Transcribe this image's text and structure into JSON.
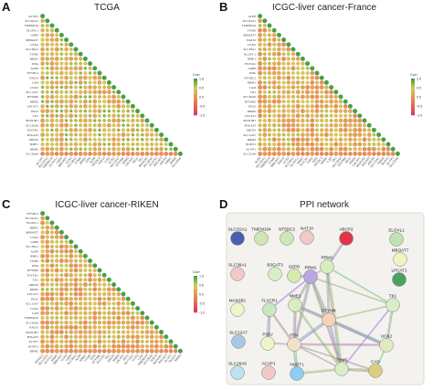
{
  "figure": {
    "panels": [
      {
        "id": "A",
        "letter": "A",
        "title": "TCGA",
        "type": "correlation",
        "genes": [
          "ACVP1",
          "SLCO2A1",
          "TMEM104",
          "ELOVL1",
          "G6PD",
          "MBOAT7",
          "UCK2",
          "SLC38A1",
          "TYMS",
          "RRM1",
          "ITPA",
          "ACPP",
          "NT5DC2",
          "NAT10",
          "CAD",
          "UCK2",
          "SLC12A7",
          "DTYMK",
          "RRM2",
          "LPCAT1",
          "PIGU",
          "TK1",
          "MAN1B1",
          "SLC26A6",
          "FLVCR1",
          "B3GAT3",
          "ABCP2",
          "NME1",
          "RRM2",
          "SLC26A6"
        ],
        "legend": {
          "title": "Corr",
          "ticks": [
            "1.0",
            "0.5",
            "0.0",
            "-0.5",
            "-1.0"
          ]
        }
      },
      {
        "id": "B",
        "letter": "B",
        "title": "ICGC-liver cancer-France",
        "type": "correlation",
        "genes": [
          "ACPP",
          "SLCO2A1",
          "TMEM104",
          "TYMS",
          "MBOAT7",
          "NAT10",
          "UCK2",
          "SLC38A1",
          "ELOVL1",
          "NME1",
          "FLVCR1",
          "G6PD",
          "ITPA",
          "NT5DC2",
          "RRM1",
          "CAD",
          "TK1",
          "SLC26A6",
          "DTYMK",
          "PIGU",
          "RRM2",
          "LPCAT1",
          "MAN1B1",
          "B3GAT3",
          "ABCP2",
          "SLC12A7",
          "RRM2",
          "NUDT1",
          "ACVP1",
          "SLC25A6"
        ],
        "legend": {
          "title": "Corr",
          "ticks": [
            "1.0",
            "0.5",
            "0.0",
            "-0.5",
            "-1.0"
          ]
        }
      },
      {
        "id": "C",
        "letter": "C",
        "title": "ICGC-liver cancer-RIKEN",
        "type": "correlation",
        "genes": [
          "NT5DC2",
          "SLCO2A1",
          "ELOVL1",
          "RRM1",
          "MBOAT7",
          "UCK2",
          "G6PD",
          "SLC38A1",
          "ACPP",
          "NME1",
          "TYMS",
          "ITPA",
          "DTYMK",
          "FLVCR1",
          "TK1",
          "ABCP2",
          "RRM2",
          "LPCAT1",
          "PIGU",
          "SLC12A7",
          "UCK2",
          "CAD",
          "TMEM104",
          "SLC26A6",
          "NAT10",
          "MAN1B1",
          "B3GAT3",
          "ACVP1",
          "NUDT1",
          "RRM2"
        ],
        "legend": {
          "title": "Corr",
          "ticks": [
            "1.0",
            "0.5",
            "0.0",
            "-0.5",
            "-1.0"
          ]
        }
      },
      {
        "id": "D",
        "letter": "D",
        "title": "PPI network",
        "type": "network",
        "nodes": [
          {
            "id": "SLCO2A1",
            "color": "#4b5fb0"
          },
          {
            "id": "TMEM104",
            "color": "#cfe6b8"
          },
          {
            "id": "NT5DC2",
            "color": "#cfe6b8"
          },
          {
            "id": "NAT10",
            "color": "#f3c8c8"
          },
          {
            "id": "ABCP2",
            "color": "#e0354a"
          },
          {
            "id": "ELOVL1",
            "color": "#bfe2b0"
          },
          {
            "id": "MBOAT7",
            "color": "#eef3c0"
          },
          {
            "id": "LPCAT1",
            "color": "#4fa060"
          },
          {
            "id": "SLC38A1",
            "color": "#f3c8c8"
          },
          {
            "id": "B3GAT3",
            "color": "#d8eec8"
          },
          {
            "id": "G6PD",
            "color": "#d6eab0"
          },
          {
            "id": "RRM2",
            "color": "#b8a8e0"
          },
          {
            "id": "RRM1",
            "color": "#d8eec0"
          },
          {
            "id": "MAN1B1",
            "color": "#eef5c8"
          },
          {
            "id": "FLVCR1",
            "color": "#c8e8c0"
          },
          {
            "id": "NME1",
            "color": "#d8eec0"
          },
          {
            "id": "TK1",
            "color": "#d8eec8"
          },
          {
            "id": "DTYMK",
            "color": "#f5d2b8"
          },
          {
            "id": "SLC12A7",
            "color": "#a8c8e8"
          },
          {
            "id": "PIGU",
            "color": "#eef5c8"
          },
          {
            "id": "ITPA",
            "color": "#f0e2c8"
          },
          {
            "id": "UCK2",
            "color": "#e0ecc0"
          },
          {
            "id": "SLC26A6",
            "color": "#bfe0f0"
          },
          {
            "id": "ACVP1",
            "color": "#f3c8c8"
          },
          {
            "id": "NUDT1",
            "color": "#8ccff0"
          },
          {
            "id": "TYMS",
            "color": "#d8eec8"
          },
          {
            "id": "CAD",
            "color": "#d8d080"
          }
        ]
      }
    ]
  }
}
